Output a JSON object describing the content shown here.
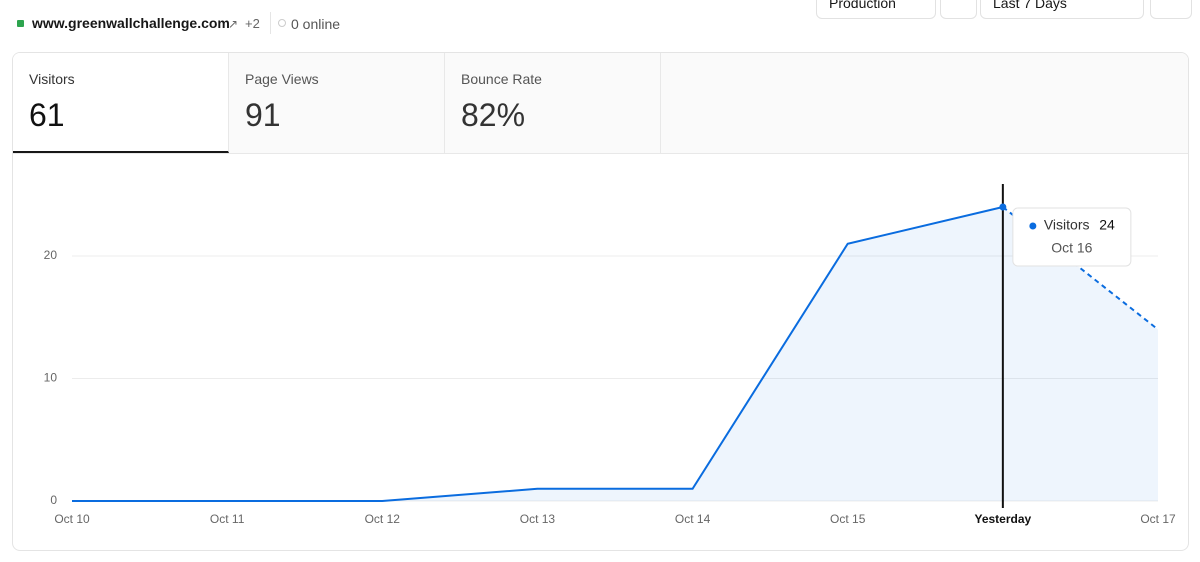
{
  "header": {
    "site": "www.greenwallchallenge.com",
    "extra": "+2",
    "online": "0 online",
    "environment": "Production",
    "range": "Last 7 Days"
  },
  "metrics": [
    {
      "label": "Visitors",
      "value": "61"
    },
    {
      "label": "Page Views",
      "value": "91"
    },
    {
      "label": "Bounce Rate",
      "value": "82%"
    }
  ],
  "chart_data": {
    "type": "line",
    "categories": [
      "Oct 10",
      "Oct 11",
      "Oct 12",
      "Oct 13",
      "Oct 14",
      "Oct 15",
      "Yesterday",
      "Oct 17"
    ],
    "series": [
      {
        "name": "Visitors",
        "color": "#0a6cdf",
        "values": [
          0,
          0,
          0,
          1,
          1,
          21,
          24,
          14
        ]
      }
    ],
    "ylim": [
      0,
      25
    ],
    "yticks": [
      0,
      10,
      20
    ],
    "grid": true,
    "tooltip": {
      "date": "Oct 16"
    }
  }
}
